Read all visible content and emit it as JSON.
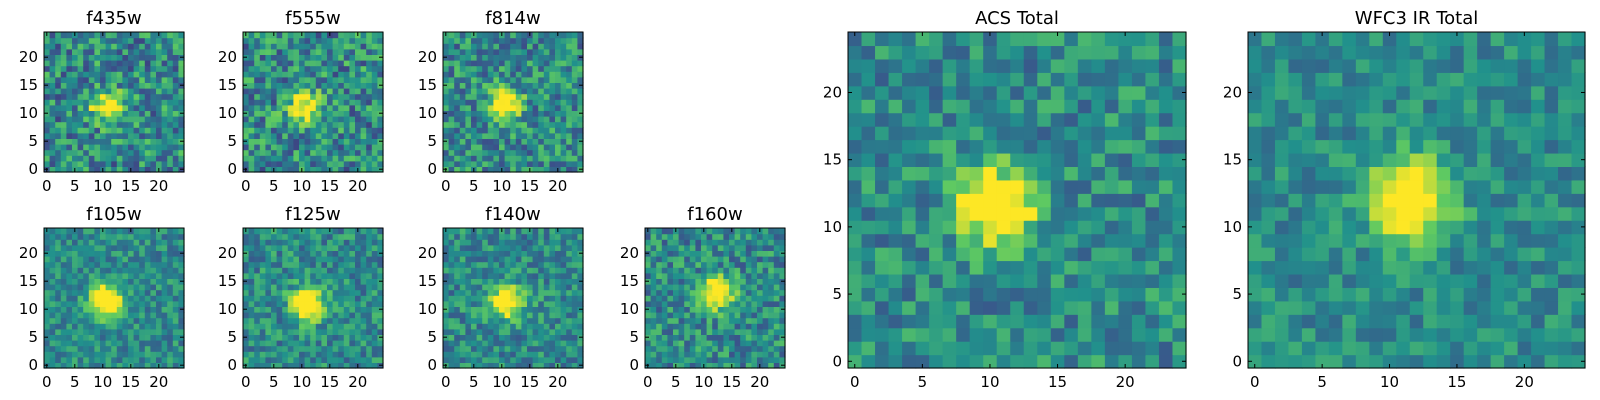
{
  "figure": {
    "colormap_name": "viridis",
    "colormap_stops": [
      "#440154",
      "#3b528b",
      "#21918c",
      "#5ec962",
      "#fde725"
    ]
  },
  "chart_data": [
    {
      "type": "heatmap",
      "title": "f435w",
      "xlim": [
        0,
        24
      ],
      "ylim": [
        0,
        24
      ],
      "xticks": [
        "0",
        "5",
        "10",
        "15",
        "20"
      ],
      "yticks": [
        "0",
        "5",
        "10",
        "15",
        "20"
      ],
      "grid_size": [
        25,
        25
      ],
      "source_position": [
        10.5,
        11.5
      ],
      "peak_level": 0.55,
      "noise_level": 0.55
    },
    {
      "type": "heatmap",
      "title": "f555w",
      "xlim": [
        0,
        24
      ],
      "ylim": [
        0,
        24
      ],
      "xticks": [
        "0",
        "5",
        "10",
        "15",
        "20"
      ],
      "yticks": [
        "0",
        "5",
        "10",
        "15",
        "20"
      ],
      "grid_size": [
        25,
        25
      ],
      "source_position": [
        10.5,
        11.0
      ],
      "peak_level": 0.7,
      "noise_level": 0.55
    },
    {
      "type": "heatmap",
      "title": "f814w",
      "xlim": [
        0,
        24
      ],
      "ylim": [
        0,
        24
      ],
      "xticks": [
        "0",
        "5",
        "10",
        "15",
        "20"
      ],
      "yticks": [
        "0",
        "5",
        "10",
        "15",
        "20"
      ],
      "grid_size": [
        25,
        25
      ],
      "source_position": [
        10.5,
        11.5
      ],
      "peak_level": 0.75,
      "noise_level": 0.5
    },
    {
      "type": "heatmap",
      "title": "f105w",
      "xlim": [
        0,
        24
      ],
      "ylim": [
        0,
        24
      ],
      "xticks": [
        "0",
        "5",
        "10",
        "15",
        "20"
      ],
      "yticks": [
        "0",
        "5",
        "10",
        "15",
        "20"
      ],
      "grid_size": [
        25,
        25
      ],
      "source_position": [
        10.5,
        11.5
      ],
      "peak_level": 0.85,
      "noise_level": 0.35
    },
    {
      "type": "heatmap",
      "title": "f125w",
      "xlim": [
        0,
        24
      ],
      "ylim": [
        0,
        24
      ],
      "xticks": [
        "0",
        "5",
        "10",
        "15",
        "20"
      ],
      "yticks": [
        "0",
        "5",
        "10",
        "15",
        "20"
      ],
      "grid_size": [
        25,
        25
      ],
      "source_position": [
        11.0,
        11.0
      ],
      "peak_level": 0.8,
      "noise_level": 0.4
    },
    {
      "type": "heatmap",
      "title": "f140w",
      "xlim": [
        0,
        24
      ],
      "ylim": [
        0,
        24
      ],
      "xticks": [
        "0",
        "5",
        "10",
        "15",
        "20"
      ],
      "yticks": [
        "0",
        "5",
        "10",
        "15",
        "20"
      ],
      "grid_size": [
        25,
        25
      ],
      "source_position": [
        11.0,
        11.5
      ],
      "peak_level": 0.75,
      "noise_level": 0.4
    },
    {
      "type": "heatmap",
      "title": "f160w",
      "xlim": [
        0,
        24
      ],
      "ylim": [
        0,
        24
      ],
      "xticks": [
        "0",
        "5",
        "10",
        "15",
        "20"
      ],
      "yticks": [
        "0",
        "5",
        "10",
        "15",
        "20"
      ],
      "grid_size": [
        25,
        25
      ],
      "source_position": [
        12.5,
        13.0
      ],
      "peak_level": 0.75,
      "noise_level": 0.45
    },
    {
      "type": "heatmap",
      "title": "ACS Total",
      "xlim": [
        0,
        24
      ],
      "ylim": [
        0,
        24
      ],
      "xticks": [
        "0",
        "5",
        "10",
        "15",
        "20"
      ],
      "yticks": [
        "0",
        "5",
        "10",
        "15",
        "20"
      ],
      "grid_size": [
        25,
        25
      ],
      "source_position": [
        10.5,
        11.5
      ],
      "peak_level": 0.85,
      "noise_level": 0.4
    },
    {
      "type": "heatmap",
      "title": "WFC3 IR Total",
      "xlim": [
        0,
        24
      ],
      "ylim": [
        0,
        24
      ],
      "xticks": [
        "0",
        "5",
        "10",
        "15",
        "20"
      ],
      "yticks": [
        "0",
        "5",
        "10",
        "15",
        "20"
      ],
      "grid_size": [
        25,
        25
      ],
      "source_position": [
        11.5,
        12.0
      ],
      "peak_level": 0.85,
      "noise_level": 0.3
    }
  ]
}
